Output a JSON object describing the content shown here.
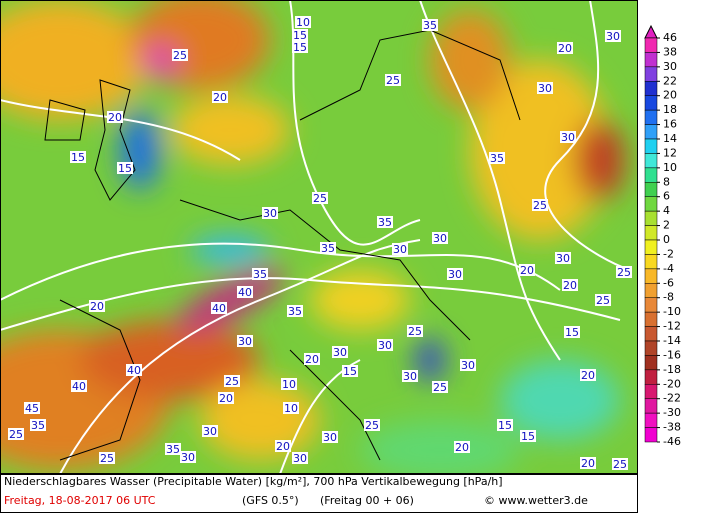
{
  "legend": {
    "levels": [
      46,
      38,
      30,
      22,
      20,
      18,
      16,
      14,
      12,
      10,
      8,
      6,
      4,
      2,
      0,
      -2,
      -4,
      -6,
      -8,
      -10,
      -12,
      -14,
      -16,
      -18,
      -20,
      -22,
      -30,
      -38,
      -46
    ],
    "colors": [
      "#e020c0",
      "#f028b0",
      "#c030d0",
      "#8040e0",
      "#2030d0",
      "#1848e0",
      "#2070f0",
      "#30a0f8",
      "#20d0f0",
      "#40e8d8",
      "#30e090",
      "#40d050",
      "#70d840",
      "#a8e030",
      "#d0e828",
      "#f0f020",
      "#f8d820",
      "#f8b828",
      "#f0a030",
      "#e88838",
      "#d87030",
      "#c85830",
      "#b04428",
      "#a03020",
      "#c02040",
      "#d81870",
      "#e018a0",
      "#f010c0",
      "#f000d0"
    ]
  },
  "contours": [
    25,
    20,
    15,
    15,
    20,
    15,
    15,
    10,
    35,
    20,
    30,
    30,
    30,
    35,
    25,
    30,
    25,
    35,
    30,
    30,
    35,
    30,
    25,
    20,
    30,
    25,
    25,
    35,
    40,
    40,
    35,
    30,
    40,
    40,
    25,
    20,
    10,
    10,
    20,
    15,
    30,
    25,
    30,
    25,
    30,
    30,
    20,
    45,
    25,
    35,
    35,
    20,
    30,
    30,
    25,
    20,
    15,
    15,
    20,
    25,
    20,
    30,
    25,
    30,
    15,
    20
  ],
  "footer": {
    "title": "Niederschlagbares Wasser (Precipitable Water) [kg/m²], 700 hPa Vertikalbewegung [hPa/h]",
    "date": "Freitag, 18-08-2017  06 UTC",
    "model": "(GFS 0.5°)",
    "run": "(Freitag 00 + 06)",
    "credit": "© www.wetter3.de"
  }
}
